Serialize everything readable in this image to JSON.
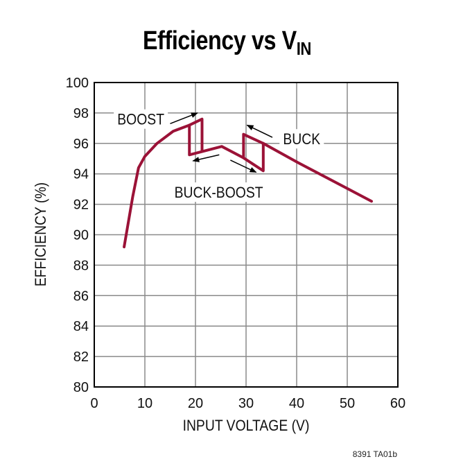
{
  "chart_data": {
    "type": "line",
    "title": "Efficiency vs V",
    "title_subscript": "IN",
    "xlabel": "INPUT VOLTAGE (V)",
    "ylabel": "EFFICIENCY (%)",
    "xlim": [
      0,
      60
    ],
    "ylim": [
      80,
      100
    ],
    "xticks": [
      "0",
      "10",
      "20",
      "30",
      "40",
      "50",
      "60"
    ],
    "yticks": [
      "80",
      "82",
      "84",
      "86",
      "88",
      "90",
      "92",
      "94",
      "96",
      "98",
      "100"
    ],
    "grid": true,
    "line_color": "#9b1237",
    "series": [
      {
        "segments": [
          [
            [
              5.9,
              89.2
            ],
            [
              7.6,
              92.5
            ],
            [
              8.75,
              94.4
            ],
            [
              10,
              95.15
            ],
            [
              12.4,
              96.0
            ],
            [
              15.6,
              96.8
            ],
            [
              18.8,
              97.2
            ],
            [
              21.3,
              97.6
            ],
            [
              21.3,
              95.5
            ]
          ],
          [
            [
              18.8,
              97.2
            ],
            [
              18.8,
              95.25
            ],
            [
              25.2,
              95.8
            ],
            [
              29.5,
              95.05
            ],
            [
              29.5,
              96.6
            ],
            [
              33.4,
              96.0
            ],
            [
              40.2,
              94.75
            ],
            [
              54.8,
              92.2
            ]
          ],
          [
            [
              29.5,
              95.05
            ],
            [
              33.4,
              94.2
            ],
            [
              33.4,
              96.0
            ]
          ]
        ]
      }
    ],
    "annotations": [
      {
        "text": "BOOST",
        "x": 9.2,
        "y": 97.6,
        "arrow_from": [
          15.0,
          97.3
        ],
        "arrow_to": [
          20.4,
          98.0
        ]
      },
      {
        "text": "BUCK",
        "x": 41.0,
        "y": 96.3,
        "arrow_from": [
          35.2,
          96.4
        ],
        "arrow_to": [
          30.2,
          97.2
        ]
      },
      {
        "text": "BUCK-BOOST",
        "x": 24.6,
        "y": 92.8,
        "arrow_from": [
          24.7,
          95.25
        ],
        "arrow_to": [
          19.5,
          94.85
        ],
        "arrow2_from": [
          26.9,
          94.9
        ],
        "arrow2_to": [
          32.0,
          94.1
        ]
      }
    ]
  },
  "footer": "8391 TA01b"
}
